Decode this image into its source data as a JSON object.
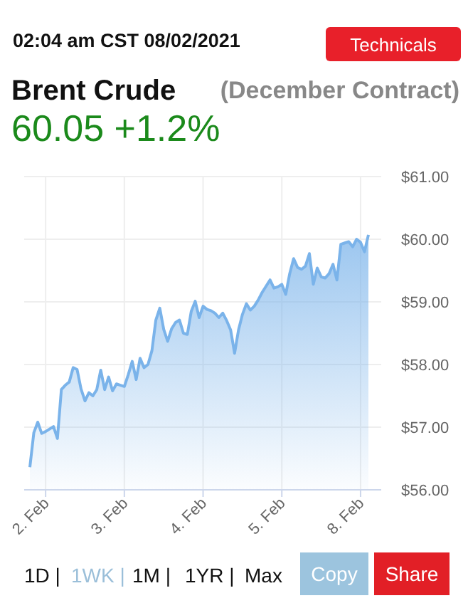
{
  "chart_data": {
    "type": "area",
    "title": "Brent Crude",
    "subtitle": "(December Contract)",
    "annotations": [
      "02:04 am CST 08/02/2021",
      "60.05 +1.2%",
      "Technicals",
      "1D |",
      "1WK |",
      "1M |",
      "1YR |",
      "Max",
      "Copy",
      "Share"
    ],
    "categories": [
      null,
      null,
      null,
      null,
      "2. Feb",
      null,
      null,
      null,
      null,
      null,
      null,
      null,
      null,
      null,
      null,
      null,
      null,
      null,
      null,
      null,
      null,
      null,
      null,
      null,
      "3. Feb",
      null,
      null,
      null,
      null,
      null,
      null,
      null,
      null,
      null,
      null,
      null,
      null,
      null,
      null,
      null,
      null,
      null,
      null,
      null,
      "4. Feb",
      null,
      null,
      null,
      null,
      null,
      null,
      null,
      null,
      null,
      null,
      null,
      null,
      null,
      null,
      null,
      null,
      null,
      null,
      null,
      "5. Feb",
      null,
      null,
      null,
      null,
      null,
      null,
      null,
      null,
      null,
      null,
      null,
      null,
      null,
      null,
      null,
      null,
      null,
      null,
      null,
      "8. Feb",
      null,
      null
    ],
    "ylim": [
      56,
      61
    ],
    "yticks": [
      {
        "value": 56,
        "label": "$56.00"
      },
      {
        "value": 57,
        "label": "$57.00"
      },
      {
        "value": 58,
        "label": "$58.00"
      },
      {
        "value": 59,
        "label": "$59.00"
      },
      {
        "value": 60,
        "label": "$60.00"
      },
      {
        "value": 61,
        "label": "$61.00"
      }
    ],
    "grid": true,
    "series": [
      {
        "color": "#7ab3ea",
        "values": [
          56.36,
          56.91,
          57.08,
          56.9,
          56.93,
          56.97,
          57.01,
          56.82,
          57.6,
          57.67,
          57.72,
          57.95,
          57.92,
          57.61,
          57.42,
          57.55,
          57.5,
          57.6,
          57.91,
          57.6,
          57.8,
          57.58,
          57.69,
          57.67,
          57.65,
          57.84,
          58.05,
          57.76,
          58.1,
          57.95,
          58.0,
          58.22,
          58.71,
          58.9,
          58.56,
          58.37,
          58.57,
          58.67,
          58.71,
          58.5,
          58.48,
          58.85,
          59.01,
          58.75,
          58.93,
          58.88,
          58.86,
          58.82,
          58.75,
          58.82,
          58.7,
          58.55,
          58.18,
          58.55,
          58.8,
          58.97,
          58.87,
          58.93,
          59.03,
          59.15,
          59.25,
          59.35,
          59.22,
          59.24,
          59.28,
          59.12,
          59.45,
          59.69,
          59.55,
          59.52,
          59.57,
          59.77,
          59.28,
          59.54,
          59.4,
          59.38,
          59.45,
          59.6,
          59.35,
          59.92,
          59.94,
          59.96,
          59.88,
          60.0,
          59.95,
          59.8,
          60.07
        ]
      }
    ]
  }
}
